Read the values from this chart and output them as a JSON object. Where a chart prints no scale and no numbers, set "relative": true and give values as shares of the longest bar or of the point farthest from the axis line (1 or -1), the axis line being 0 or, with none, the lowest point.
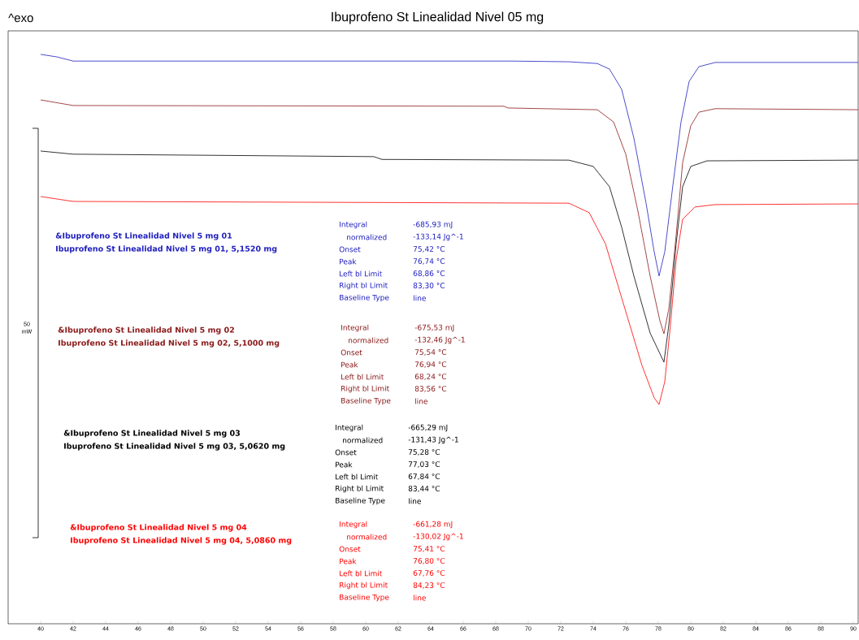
{
  "chart_data": {
    "type": "line",
    "title": "Ibuprofeno St Linealidad Nivel 05 mg",
    "relative": true,
    "xlim": [
      38,
      90.3
    ],
    "xticks": [
      40,
      42,
      44,
      46,
      48,
      50,
      52,
      54,
      56,
      58,
      60,
      62,
      64,
      66,
      68,
      70,
      72,
      74,
      76,
      78,
      80,
      82,
      84,
      86,
      88,
      90
    ],
    "series": [
      {
        "name": "&Ibuprofeno St Linealidad Nivel 5 mg 01",
        "color": "#1f1fbf",
        "x": [
          40,
          41,
          42,
          52.5,
          69,
          72.5,
          74.25,
          75,
          75.75,
          76.5,
          77.25,
          77.75,
          78.05,
          78.4,
          78.9,
          79.4,
          79.9,
          80.5,
          81.5,
          90.3
        ],
        "values": [
          1.0,
          0.993,
          0.981,
          0.981,
          0.981,
          0.979,
          0.974,
          0.958,
          0.9,
          0.761,
          0.575,
          0.436,
          0.367,
          0.436,
          0.626,
          0.807,
          0.923,
          0.965,
          0.977,
          0.977
        ]
      },
      {
        "name": "&Ibuprofeno St Linealidad Nivel 5 mg 02",
        "color": "#8b1a1a",
        "x": [
          40,
          42,
          68.5,
          68.75,
          74.25,
          75.25,
          76,
          76.75,
          77.5,
          78.1,
          78.35,
          78.65,
          79.1,
          79.5,
          80,
          80.5,
          81.5,
          90.3
        ],
        "values": [
          0.87,
          0.854,
          0.852,
          0.847,
          0.842,
          0.807,
          0.715,
          0.552,
          0.367,
          0.239,
          0.202,
          0.274,
          0.483,
          0.691,
          0.796,
          0.835,
          0.845,
          0.842
        ]
      },
      {
        "name": "&Ibuprofeno St Linealidad Nivel 5 mg 03",
        "color": "#000000",
        "x": [
          40,
          42,
          60.5,
          61,
          72.5,
          74,
          75,
          75.75,
          76.5,
          77.5,
          78.35,
          78.65,
          79.1,
          79.5,
          80,
          81,
          90.3
        ],
        "values": [
          0.724,
          0.715,
          0.708,
          0.7,
          0.698,
          0.68,
          0.622,
          0.506,
          0.367,
          0.204,
          0.121,
          0.227,
          0.459,
          0.622,
          0.68,
          0.696,
          0.698
        ]
      },
      {
        "name": "&Ibuprofeno St Linealidad Nivel 5 mg 04",
        "color": "#ff0000",
        "x": [
          40,
          42,
          72.5,
          73.75,
          74.75,
          75.5,
          76.25,
          77,
          77.75,
          78.05,
          78.4,
          78.75,
          79.1,
          79.5,
          80.25,
          81.5,
          90.3
        ],
        "values": [
          0.594,
          0.58,
          0.575,
          0.548,
          0.459,
          0.343,
          0.227,
          0.111,
          0.019,
          0.0,
          0.065,
          0.227,
          0.413,
          0.529,
          0.564,
          0.571,
          0.573
        ]
      }
    ],
    "annotations": [
      "^exo",
      "50",
      "mW",
      "Ibuprofeno St Linealidad Nivel 5 mg 01, 5,1520 mg",
      "Integral",
      "-685,93 mJ",
      "normalized",
      "-133,14 Jg^-1",
      "Onset",
      "75,42 °C",
      "Peak",
      "76,74 °C",
      "Left bl Limit",
      "68,86 °C",
      "Right bl Limit",
      "83,30 °C",
      "Baseline Type",
      "line",
      "Ibuprofeno St Linealidad Nivel 5 mg 02, 5,1000 mg",
      "Integral",
      "-675,53 mJ",
      "normalized",
      "-132,46 Jg^-1",
      "Onset",
      "75,54 °C",
      "Peak",
      "76,94 °C",
      "Left bl Limit",
      "68,24 °C",
      "Right bl Limit",
      "83,56 °C",
      "Baseline Type",
      "line",
      "Ibuprofeno St Linealidad Nivel 5 mg 03, 5,0620 mg",
      "Integral",
      "-665,29 mJ",
      "normalized",
      "-131,43 Jg^-1",
      "Onset",
      "75,28 °C",
      "Peak",
      "77,03 °C",
      "Left bl Limit",
      "67,84 °C",
      "Right bl Limit",
      "83,44 °C",
      "Baseline Type",
      "line",
      "Ibuprofeno St Linealidad Nivel 5 mg 04, 5,0860 mg",
      "Integral",
      "-661,28 mJ",
      "normalized",
      "-130,02 Jg^-1",
      "Onset",
      "75,41 °C",
      "Peak",
      "76,80 °C",
      "Left bl Limit",
      "67,76 °C",
      "Right bl Limit",
      "84,23 °C",
      "Baseline Type",
      "line"
    ]
  }
}
